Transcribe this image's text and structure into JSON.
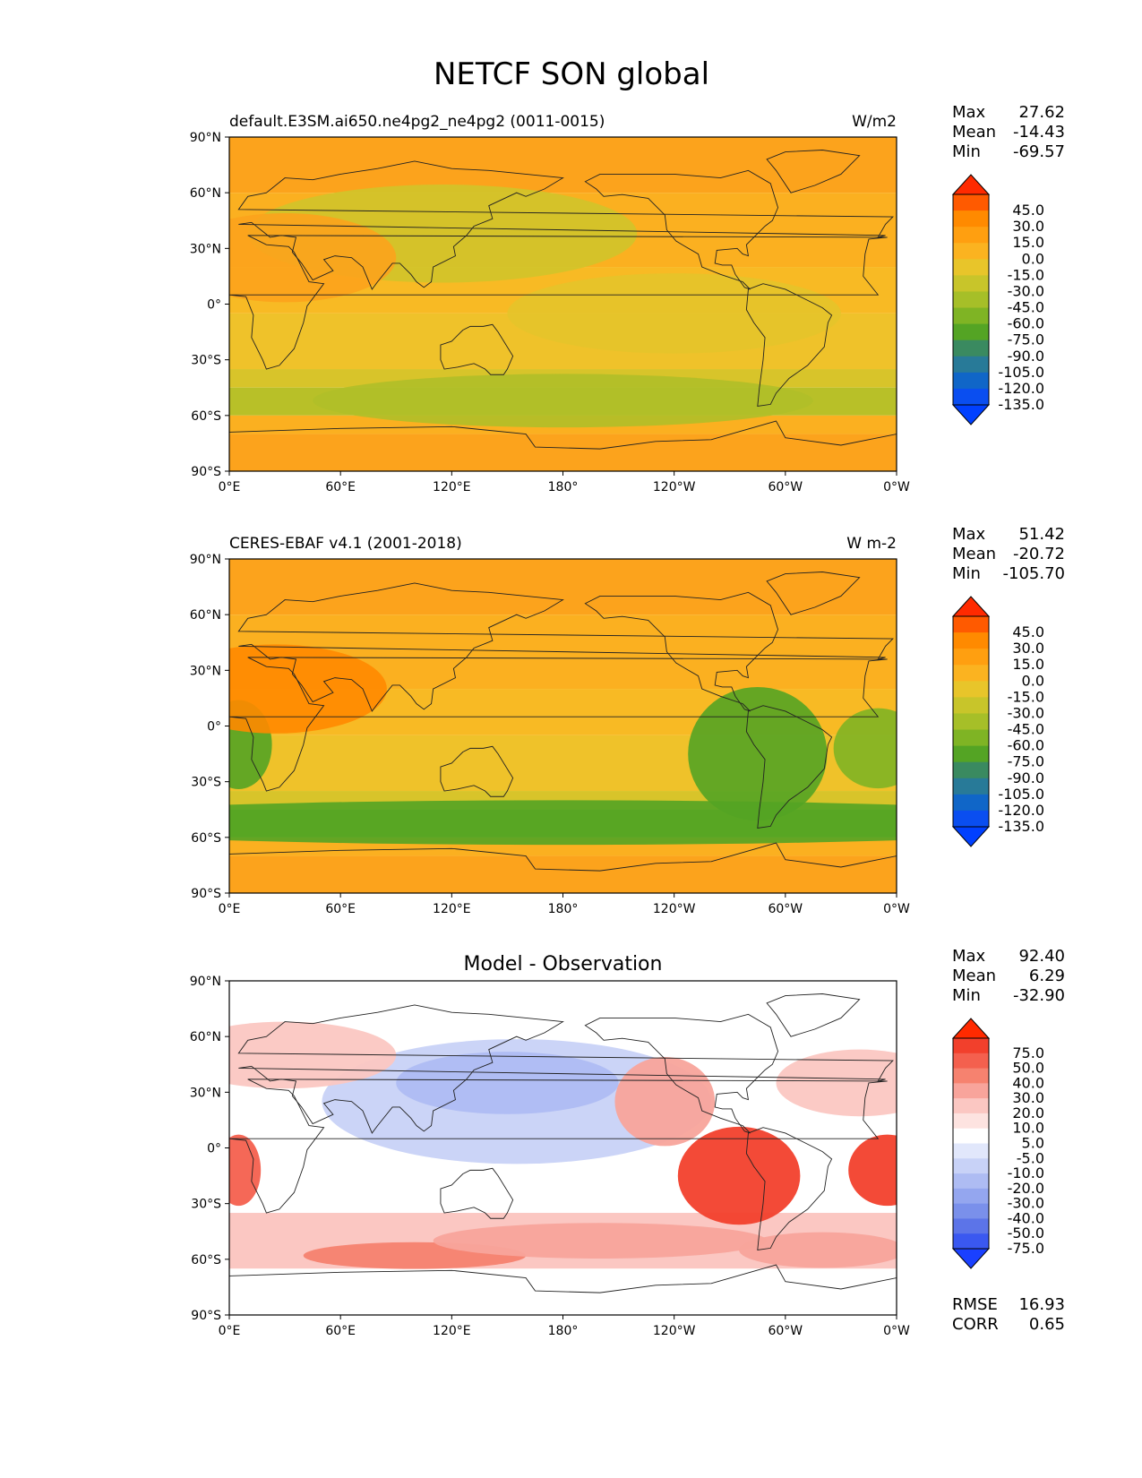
{
  "figure_title": "NETCF SON global",
  "lat_ticks": [
    "90°N",
    "60°N",
    "30°N",
    "0°",
    "30°S",
    "60°S",
    "90°S"
  ],
  "lon_ticks": [
    "0°E",
    "60°E",
    "120°E",
    "180°",
    "120°W",
    "60°W",
    "0°W"
  ],
  "stat_labels": {
    "max": "Max",
    "mean": "Mean",
    "min": "Min",
    "rmse": "RMSE",
    "corr": "CORR"
  },
  "panels": [
    {
      "left_title": "default.E3SM.ai650.ne4pg2_ne4pg2 (0011-0015)",
      "center_title": "",
      "units": "W/m2",
      "stats": {
        "max": "27.62",
        "mean": "-14.43",
        "min": "-69.57"
      },
      "colorbar_ticks": [
        "45.0",
        "30.0",
        "15.0",
        "0.0",
        "-15.0",
        "-30.0",
        "-45.0",
        "-60.0",
        "-75.0",
        "-90.0",
        "-105.0",
        "-120.0",
        "-135.0"
      ]
    },
    {
      "left_title": "CERES-EBAF v4.1 (2001-2018)",
      "center_title": "",
      "units": "W m-2",
      "stats": {
        "max": "51.42",
        "mean": "-20.72",
        "min": "-105.70"
      },
      "colorbar_ticks": [
        "45.0",
        "30.0",
        "15.0",
        "0.0",
        "-15.0",
        "-30.0",
        "-45.0",
        "-60.0",
        "-75.0",
        "-90.0",
        "-105.0",
        "-120.0",
        "-135.0"
      ]
    },
    {
      "left_title": "",
      "center_title": "Model - Observation",
      "units": "",
      "stats": {
        "max": "92.40",
        "mean": "6.29",
        "min": "-32.90"
      },
      "extra_stats": {
        "rmse": "16.93",
        "corr": "0.65"
      },
      "colorbar_ticks": [
        "75.0",
        "50.0",
        "40.0",
        "30.0",
        "20.0",
        "10.0",
        "5.0",
        "-5.0",
        "-10.0",
        "-20.0",
        "-30.0",
        "-40.0",
        "-50.0",
        "-75.0"
      ]
    }
  ],
  "colors": {
    "abs_colorbar": [
      "#ff2a00",
      "#ff5a00",
      "#ff8a00",
      "#ff9f10",
      "#fbb320",
      "#e8c52a",
      "#c8c52a",
      "#a6bf28",
      "#7fb424",
      "#54a424",
      "#3a8a60",
      "#287a98",
      "#1066c8",
      "#0a4ef0",
      "#0040ff"
    ],
    "diff_colorbar": [
      "#ff2a00",
      "#f2402c",
      "#f4604e",
      "#f6826f",
      "#f8a49b",
      "#fbc7c2",
      "#fde3e0",
      "#ffffff",
      "#e1e7fb",
      "#c8d2f7",
      "#aebcf3",
      "#94a6ef",
      "#7a90eb",
      "#5c74e8",
      "#3a58f0",
      "#1a40ff"
    ]
  },
  "chart_data": [
    {
      "type": "heatmap",
      "title": "default.E3SM.ai650.ne4pg2_ne4pg2 (0011-0015)",
      "units": "W/m2",
      "xlim": [
        0,
        360
      ],
      "ylim": [
        -90,
        90
      ],
      "levels": [
        -135,
        -120,
        -105,
        -90,
        -75,
        -60,
        -45,
        -30,
        -15,
        0,
        15,
        30,
        45
      ],
      "max": 27.62,
      "mean": -14.43,
      "min": -69.57
    },
    {
      "type": "heatmap",
      "title": "CERES-EBAF v4.1 (2001-2018)",
      "units": "W m-2",
      "xlim": [
        0,
        360
      ],
      "ylim": [
        -90,
        90
      ],
      "levels": [
        -135,
        -120,
        -105,
        -90,
        -75,
        -60,
        -45,
        -30,
        -15,
        0,
        15,
        30,
        45
      ],
      "max": 51.42,
      "mean": -20.72,
      "min": -105.7
    },
    {
      "type": "heatmap",
      "title": "Model - Observation",
      "xlim": [
        0,
        360
      ],
      "ylim": [
        -90,
        90
      ],
      "levels": [
        -75,
        -50,
        -40,
        -30,
        -20,
        -10,
        -5,
        5,
        10,
        20,
        30,
        40,
        50,
        75
      ],
      "max": 92.4,
      "mean": 6.29,
      "min": -32.9,
      "rmse": 16.93,
      "corr": 0.65
    }
  ]
}
